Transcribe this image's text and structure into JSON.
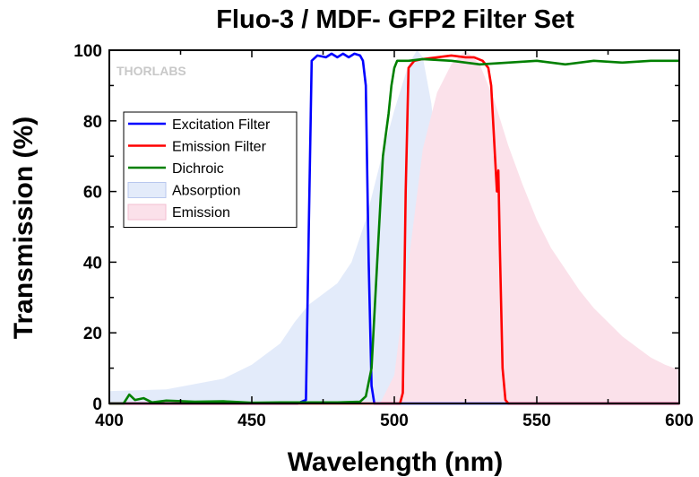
{
  "chart_data": {
    "type": "line",
    "title": "Fluo-3 / MDF- GFP2 Filter Set",
    "xlabel": "Wavelength (nm)",
    "ylabel": "Transmission (%)",
    "xlim": [
      400,
      600
    ],
    "ylim": [
      0,
      100
    ],
    "x_ticks": [
      400,
      450,
      500,
      550,
      600
    ],
    "y_ticks": [
      0,
      20,
      40,
      60,
      80,
      100
    ],
    "grid": false,
    "legend_position": "top-left",
    "watermark": "THORLABS",
    "series": [
      {
        "name": "Excitation Filter",
        "kind": "line",
        "color": "#0000ff",
        "points": [
          [
            400,
            0
          ],
          [
            466,
            0
          ],
          [
            469,
            1
          ],
          [
            470,
            50
          ],
          [
            471,
            97
          ],
          [
            473,
            98.5
          ],
          [
            476,
            98
          ],
          [
            478,
            99
          ],
          [
            480,
            98
          ],
          [
            482,
            99
          ],
          [
            484,
            98
          ],
          [
            486,
            99
          ],
          [
            488,
            98.5
          ],
          [
            489,
            97
          ],
          [
            490,
            90
          ],
          [
            491,
            40
          ],
          [
            492,
            5
          ],
          [
            493,
            0
          ],
          [
            600,
            0
          ]
        ]
      },
      {
        "name": "Emission Filter",
        "kind": "line",
        "color": "#ff0000",
        "points": [
          [
            400,
            0
          ],
          [
            502,
            0
          ],
          [
            503,
            3
          ],
          [
            504,
            60
          ],
          [
            505,
            95
          ],
          [
            507,
            97
          ],
          [
            510,
            97.5
          ],
          [
            515,
            98
          ],
          [
            520,
            98.5
          ],
          [
            525,
            98
          ],
          [
            528,
            98
          ],
          [
            531,
            97
          ],
          [
            533,
            95
          ],
          [
            534,
            90
          ],
          [
            535,
            75
          ],
          [
            536,
            60
          ],
          [
            536.5,
            66
          ],
          [
            537,
            45
          ],
          [
            538,
            10
          ],
          [
            539,
            1
          ],
          [
            540,
            0
          ],
          [
            600,
            0
          ]
        ]
      },
      {
        "name": "Dichroic",
        "kind": "line",
        "color": "#008000",
        "points": [
          [
            400,
            0
          ],
          [
            405,
            0
          ],
          [
            407,
            2.5
          ],
          [
            409,
            1
          ],
          [
            412,
            1.5
          ],
          [
            415,
            0.3
          ],
          [
            420,
            0.8
          ],
          [
            430,
            0.5
          ],
          [
            440,
            0.6
          ],
          [
            450,
            0.2
          ],
          [
            460,
            0.3
          ],
          [
            470,
            0.3
          ],
          [
            480,
            0.3
          ],
          [
            488,
            0.5
          ],
          [
            490,
            2
          ],
          [
            492,
            10
          ],
          [
            494,
            40
          ],
          [
            496,
            70
          ],
          [
            498,
            82
          ],
          [
            499,
            90
          ],
          [
            500,
            95
          ],
          [
            501,
            97
          ],
          [
            505,
            97
          ],
          [
            510,
            97.5
          ],
          [
            520,
            97
          ],
          [
            530,
            96
          ],
          [
            540,
            96.5
          ],
          [
            550,
            97
          ],
          [
            560,
            96
          ],
          [
            570,
            97
          ],
          [
            580,
            96.5
          ],
          [
            590,
            97
          ],
          [
            600,
            97
          ]
        ]
      },
      {
        "name": "Absorption",
        "kind": "area",
        "color": "#e3ebfa",
        "stroke": "#b8c7ee",
        "points": [
          [
            400,
            3.5
          ],
          [
            420,
            4
          ],
          [
            440,
            7
          ],
          [
            450,
            11
          ],
          [
            460,
            17
          ],
          [
            465,
            23
          ],
          [
            470,
            28
          ],
          [
            475,
            31
          ],
          [
            480,
            34
          ],
          [
            485,
            40
          ],
          [
            490,
            52
          ],
          [
            495,
            68
          ],
          [
            500,
            83
          ],
          [
            505,
            96
          ],
          [
            508,
            100
          ],
          [
            510,
            98
          ],
          [
            513,
            85
          ],
          [
            516,
            62
          ],
          [
            520,
            30
          ],
          [
            525,
            14
          ],
          [
            530,
            6
          ],
          [
            535,
            2
          ],
          [
            540,
            0.5
          ],
          [
            545,
            0
          ]
        ]
      },
      {
        "name": "Emission",
        "kind": "area",
        "color": "#fbe1ea",
        "stroke": "#f3bed0",
        "points": [
          [
            495,
            0
          ],
          [
            500,
            8
          ],
          [
            505,
            40
          ],
          [
            510,
            72
          ],
          [
            515,
            88
          ],
          [
            520,
            96
          ],
          [
            525,
            100
          ],
          [
            530,
            96
          ],
          [
            535,
            86
          ],
          [
            540,
            73
          ],
          [
            545,
            62
          ],
          [
            550,
            52
          ],
          [
            555,
            44
          ],
          [
            560,
            38
          ],
          [
            565,
            32
          ],
          [
            570,
            27
          ],
          [
            575,
            23
          ],
          [
            580,
            19
          ],
          [
            585,
            16
          ],
          [
            590,
            13
          ],
          [
            595,
            11
          ],
          [
            600,
            9.5
          ]
        ]
      }
    ]
  }
}
